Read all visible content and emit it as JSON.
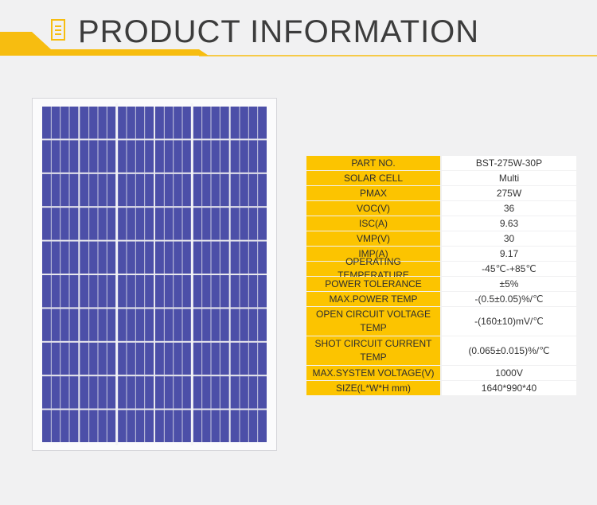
{
  "header": {
    "title": "PRODUCT INFORMATION",
    "accent_color": "#f7bd10"
  },
  "panel": {
    "cell_color": "#4c4fa8",
    "frame_color": "#d6d6da"
  },
  "specs": [
    {
      "label": "PART NO.",
      "value": "BST-275W-30P"
    },
    {
      "label": "SOLAR CELL",
      "value": "Multi"
    },
    {
      "label": "PMAX",
      "value": "275W"
    },
    {
      "label": "VOC(V)",
      "value": "36"
    },
    {
      "label": "ISC(A)",
      "value": "9.63"
    },
    {
      "label": "VMP(V)",
      "value": "30"
    },
    {
      "label": "IMP(A)",
      "value": "9.17"
    },
    {
      "label": "OPERATING TEMPERATURE",
      "value": "-45℃-+85℃"
    },
    {
      "label": "POWER TOLERANCE",
      "value": "±5%"
    },
    {
      "label": "MAX.POWER TEMP",
      "value": "-(0.5±0.05)%/℃"
    },
    {
      "label": "OPEN CIRCUIT VOLTAGE TEMP",
      "value": "-(160±10)mV/℃"
    },
    {
      "label": "SHOT CIRCUIT CURRENT TEMP",
      "value": "(0.065±0.015)%/℃"
    },
    {
      "label": "MAX.SYSTEM VOLTAGE(V)",
      "value": "1000V"
    },
    {
      "label": "SIZE(L*W*H mm)",
      "value": "1640*990*40"
    }
  ]
}
